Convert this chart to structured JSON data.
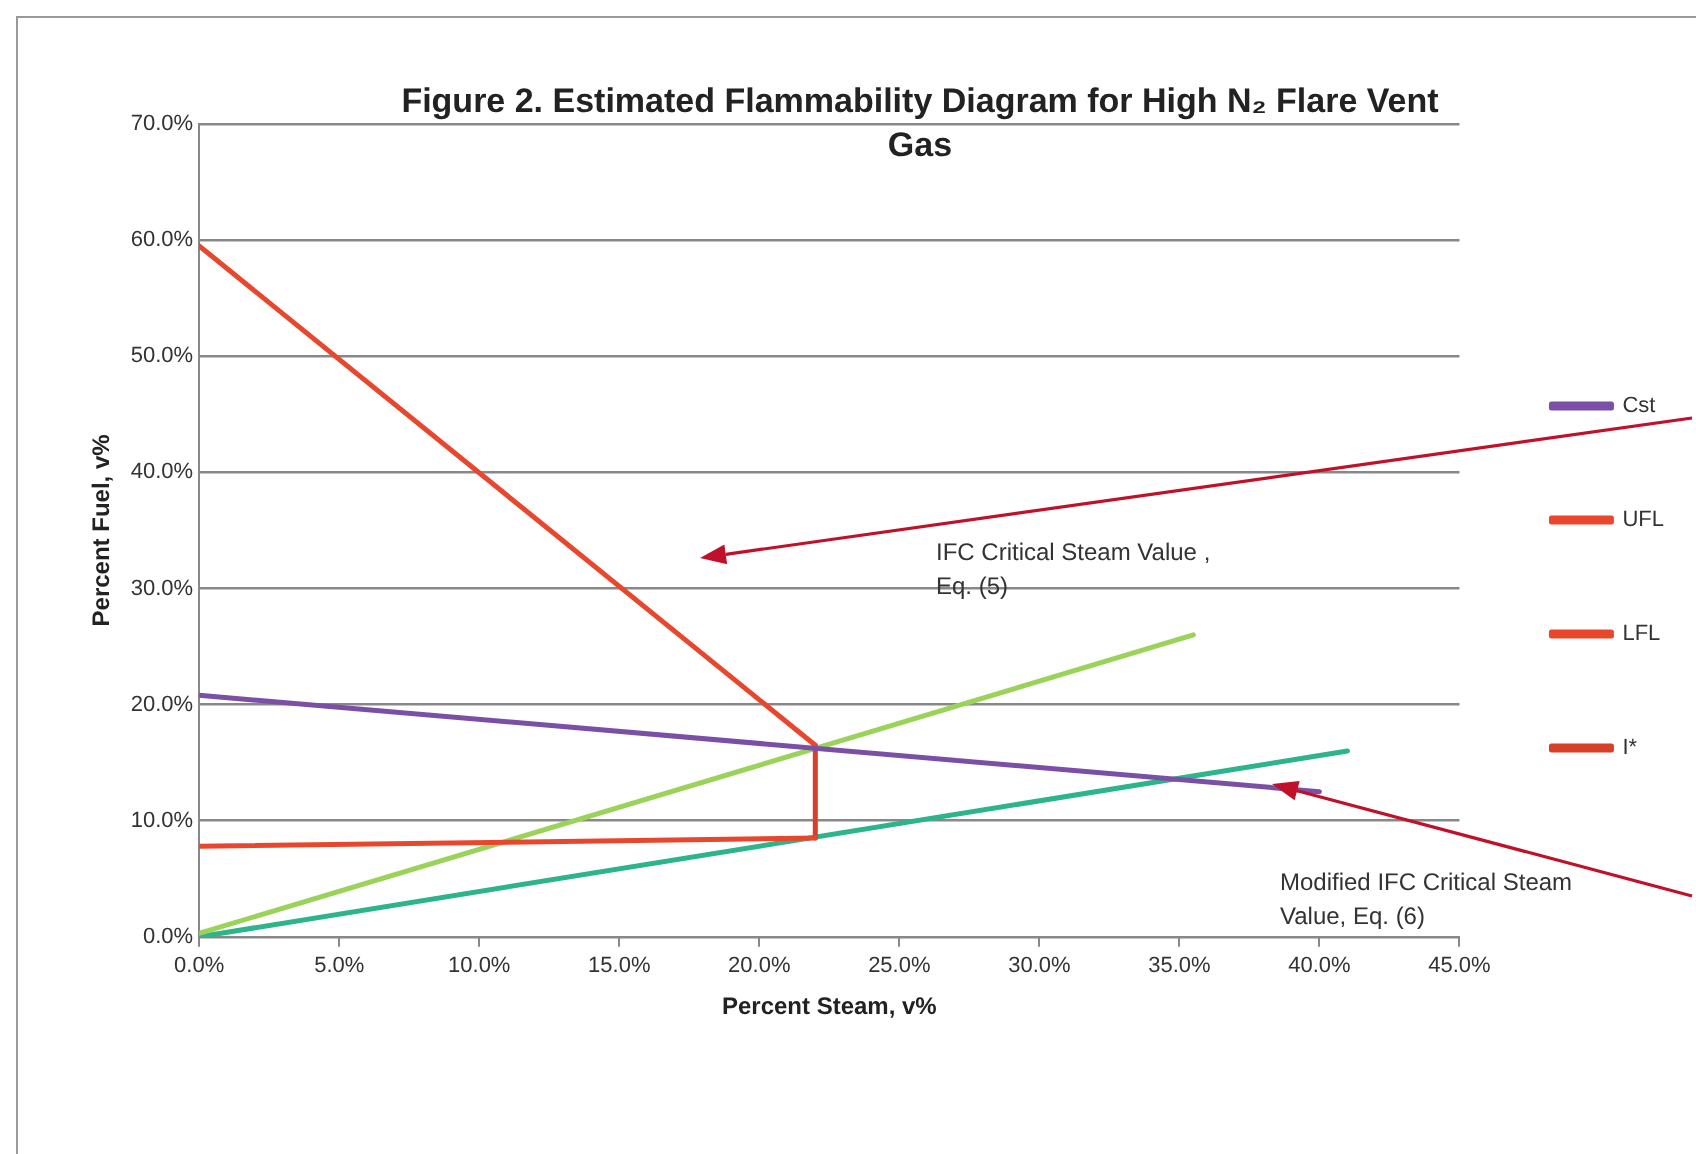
{
  "chart_data": {
    "type": "line",
    "title": "Figure 2.  Estimated Flammability Diagram for High N₂ Flare Vent Gas",
    "xlabel": "Percent Steam, v%",
    "ylabel": "Percent Fuel, v%",
    "xlim": [
      0,
      45
    ],
    "ylim": [
      0,
      70
    ],
    "xticks": [
      {
        "value": 0,
        "label": "0.0%"
      },
      {
        "value": 5,
        "label": "5.0%"
      },
      {
        "value": 10,
        "label": "10.0%"
      },
      {
        "value": 15,
        "label": "15.0%"
      },
      {
        "value": 20,
        "label": "20.0%"
      },
      {
        "value": 25,
        "label": "25.0%"
      },
      {
        "value": 30,
        "label": "30.0%"
      },
      {
        "value": 35,
        "label": "35.0%"
      },
      {
        "value": 40,
        "label": "40.0%"
      },
      {
        "value": 45,
        "label": "45.0%"
      }
    ],
    "yticks": [
      {
        "value": 0,
        "label": "0.0%"
      },
      {
        "value": 10,
        "label": "10.0%"
      },
      {
        "value": 20,
        "label": "20.0%"
      },
      {
        "value": 30,
        "label": "30.0%"
      },
      {
        "value": 40,
        "label": "40.0%"
      },
      {
        "value": 50,
        "label": "50.0%"
      },
      {
        "value": 60,
        "label": "60.0%"
      },
      {
        "value": 70,
        "label": "70.0%"
      }
    ],
    "grid": "y",
    "legend": "right",
    "marker": "none",
    "line_style": "solid",
    "series": [
      {
        "name": "Cst",
        "color": "#7b4fa6",
        "x": [
          0,
          40
        ],
        "values": [
          20.8,
          12.5
        ]
      },
      {
        "name": "UFL",
        "color": "#e8472e",
        "x": [
          0,
          22
        ],
        "values": [
          59.5,
          16.5
        ]
      },
      {
        "name": "LFL",
        "color": "#e8472e",
        "x": [
          0,
          22
        ],
        "values": [
          7.8,
          8.5
        ]
      },
      {
        "name": "I*",
        "color": "#d6402a",
        "x": [
          22,
          22
        ],
        "values": [
          8.5,
          16.5
        ]
      },
      {
        "color": "#9bd35a",
        "x": [
          0,
          35.5
        ],
        "values": [
          0.3,
          26
        ]
      },
      {
        "color": "#2cb48a",
        "x": [
          0,
          41
        ],
        "values": [
          0,
          16
        ]
      }
    ],
    "annotations": [
      "IFC Critical Steam Value , Eq. (5)",
      "Modified IFC Critical Steam Value, Eq. (6)"
    ]
  }
}
